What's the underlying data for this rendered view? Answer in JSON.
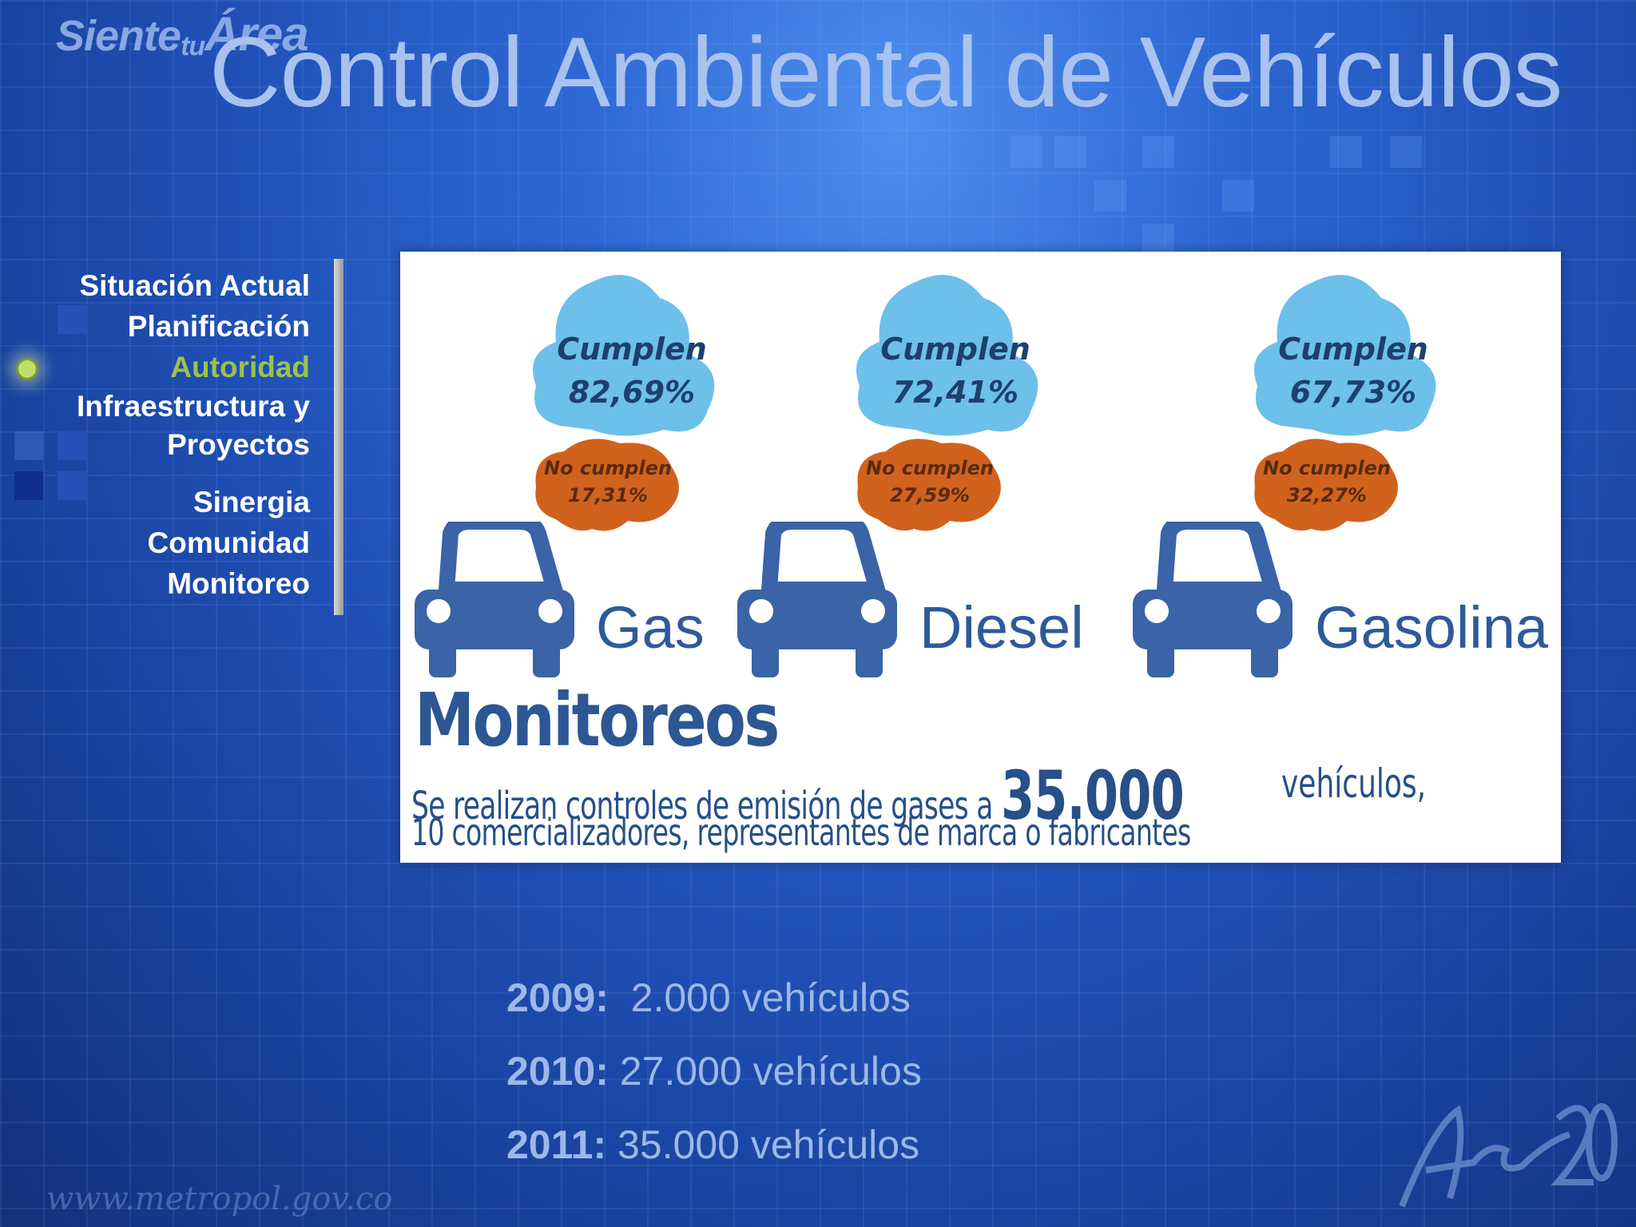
{
  "header": {
    "slogan_main": "Siente",
    "slogan_tu": "tu",
    "slogan_area": "Área",
    "title": "Control Ambiental de Vehículos"
  },
  "menu": {
    "items": [
      {
        "label": "Situación Actual",
        "active": false
      },
      {
        "label": "Planificación",
        "active": false
      },
      {
        "label": "Autoridad",
        "active": true
      },
      {
        "label": "Infraestructura y Proyectos",
        "active": false
      },
      {
        "label": "Sinergia",
        "active": false
      },
      {
        "label": "Comunidad",
        "active": false
      },
      {
        "label": "Monitoreo",
        "active": false
      }
    ]
  },
  "infographic": {
    "groups": [
      {
        "fuel": "Gas",
        "cumplen_label": "Cumplen",
        "cumplen_value": "82,69%",
        "no_cumplen_label": "No cumplen",
        "no_cumplen_value": "17,31%"
      },
      {
        "fuel": "Diesel",
        "cumplen_label": "Cumplen",
        "cumplen_value": "72,41%",
        "no_cumplen_label": "No cumplen",
        "no_cumplen_value": "27,59%"
      },
      {
        "fuel": "Gasolina",
        "cumplen_label": "Cumplen",
        "cumplen_value": "67,73%",
        "no_cumplen_label": "No cumplen",
        "no_cumplen_value": "32,27%"
      }
    ],
    "monitoreos_title": "Monitoreos",
    "line1_text": "Se realizan controles de emisión de gases a",
    "line1_number": "35.000",
    "line1_end": "vehículos,",
    "line2_text": "10 comercializadores, representantes de marca o fabricantes"
  },
  "years": [
    {
      "year": "2009:",
      "value": "  2.000 vehículos"
    },
    {
      "year": "2010:",
      "value": " 27.000 vehículos"
    },
    {
      "year": "2011:",
      "value": " 35.000 vehículos"
    }
  ],
  "footer": {
    "url": "www.metropol.gov.co"
  },
  "colors": {
    "accent_active": "#9ec14a",
    "cloud_blue": "#6cc0ea",
    "cloud_orange": "#d0621d",
    "car_blue": "#3a63a8"
  }
}
